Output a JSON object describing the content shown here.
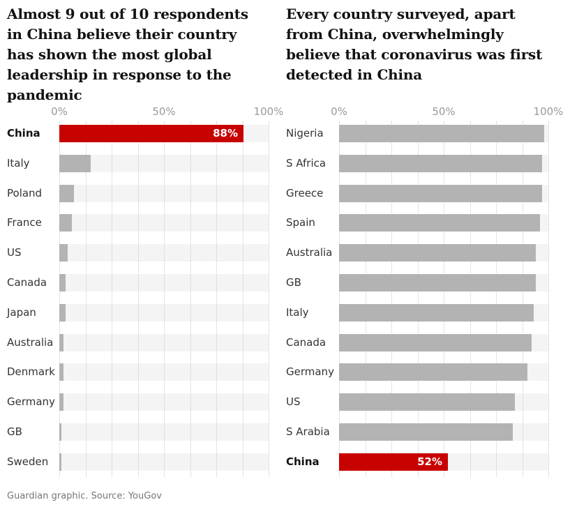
{
  "chart_data": [
    {
      "type": "bar",
      "orientation": "horizontal",
      "title": "Almost 9 out of 10 respondents in China believe their country has shown the most global leadership in response to the pandemic",
      "xlim": [
        0,
        100
      ],
      "ticks": [
        "0%",
        "50%",
        "100%"
      ],
      "categories": [
        "China",
        "Italy",
        "Poland",
        "France",
        "US",
        "Canada",
        "Japan",
        "Australia",
        "Denmark",
        "Germany",
        "GB",
        "Sweden"
      ],
      "values": [
        88,
        15,
        7,
        6,
        4,
        3,
        3,
        2,
        2,
        2,
        1,
        1
      ],
      "highlight": "China",
      "data_labels": {
        "China": "88%"
      }
    },
    {
      "type": "bar",
      "orientation": "horizontal",
      "title": "Every country surveyed, apart from China, overwhelmingly believe that coronavirus was first detected in China",
      "xlim": [
        0,
        100
      ],
      "ticks": [
        "0%",
        "50%",
        "100%"
      ],
      "categories": [
        "Nigeria",
        "S Africa",
        "Greece",
        "Spain",
        "Australia",
        "GB",
        "Italy",
        "Canada",
        "Germany",
        "US",
        "S Arabia",
        "China"
      ],
      "values": [
        98,
        97,
        97,
        96,
        94,
        94,
        93,
        92,
        90,
        84,
        83,
        52
      ],
      "highlight": "China",
      "data_labels": {
        "China": "52%"
      }
    }
  ],
  "colors": {
    "highlight": "#c70000",
    "bar": "#b3b3b3",
    "track": "#f4f4f4",
    "grid": "#c8c8c8"
  },
  "source": "Guardian graphic. Source: YouGov"
}
